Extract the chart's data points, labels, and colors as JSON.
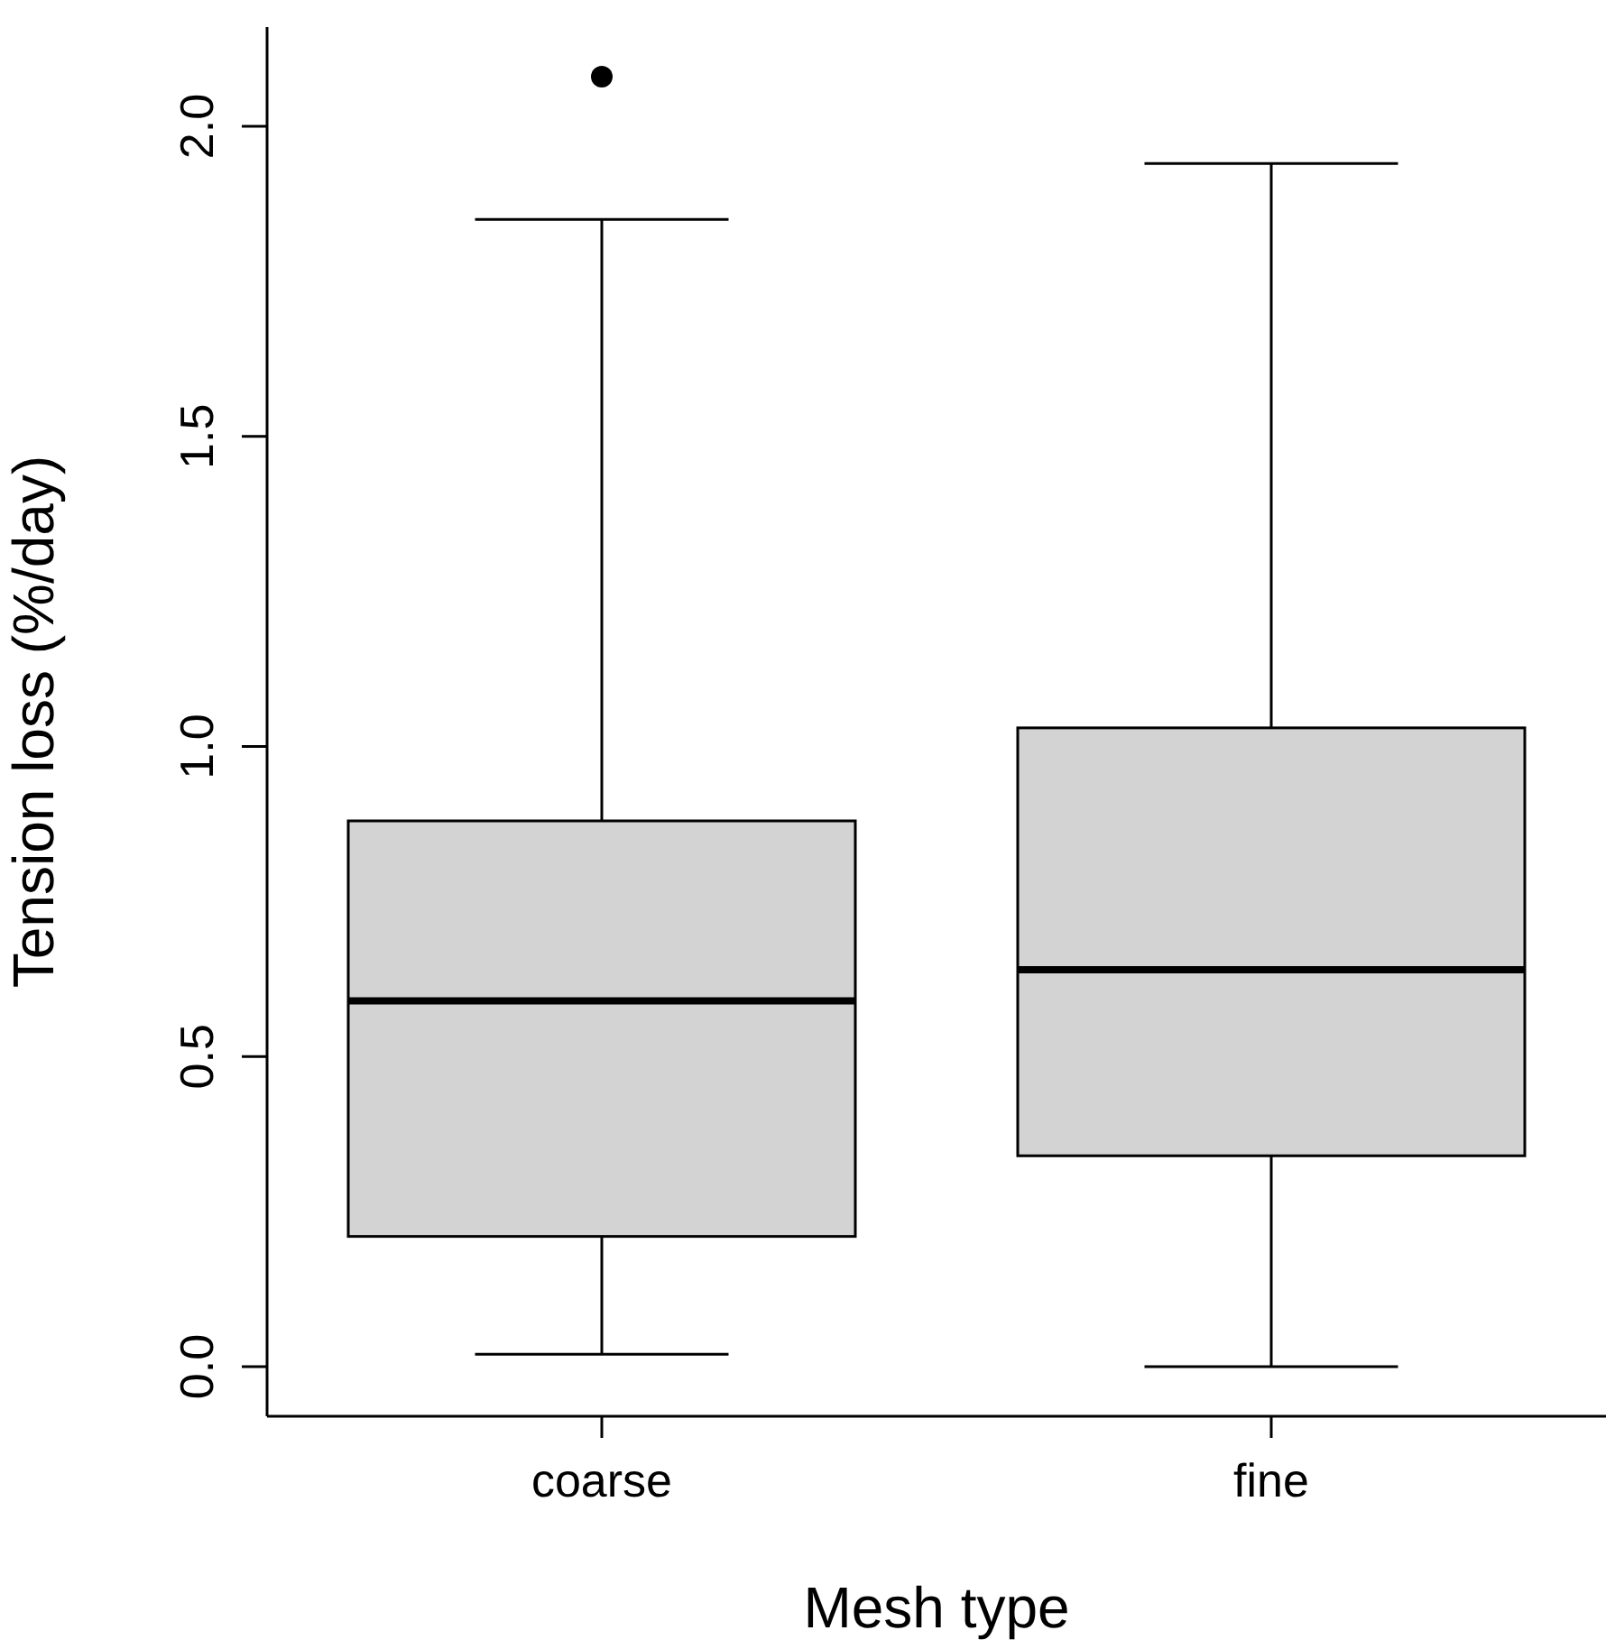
{
  "chart_data": {
    "type": "box",
    "xlabel": "Mesh type",
    "ylabel": "Tension loss (%/day)",
    "categories": [
      "coarse",
      "fine"
    ],
    "color": "#d3d3d3",
    "boxes": [
      {
        "low": 0.02,
        "q1": 0.21,
        "median": 0.59,
        "q3": 0.88,
        "high": 1.85,
        "outliers": [
          2.08
        ]
      },
      {
        "low": 0.0,
        "q1": 0.34,
        "median": 0.64,
        "q3": 1.03,
        "high": 1.94
      }
    ],
    "ylim": [
      -0.08,
      2.16
    ],
    "yticks": [
      {
        "value": 0,
        "label": "0.0"
      },
      0.5,
      {
        "value": 1,
        "label": "1.0"
      },
      1.5,
      {
        "value": 2,
        "label": "2.0"
      }
    ],
    "grid": false
  }
}
